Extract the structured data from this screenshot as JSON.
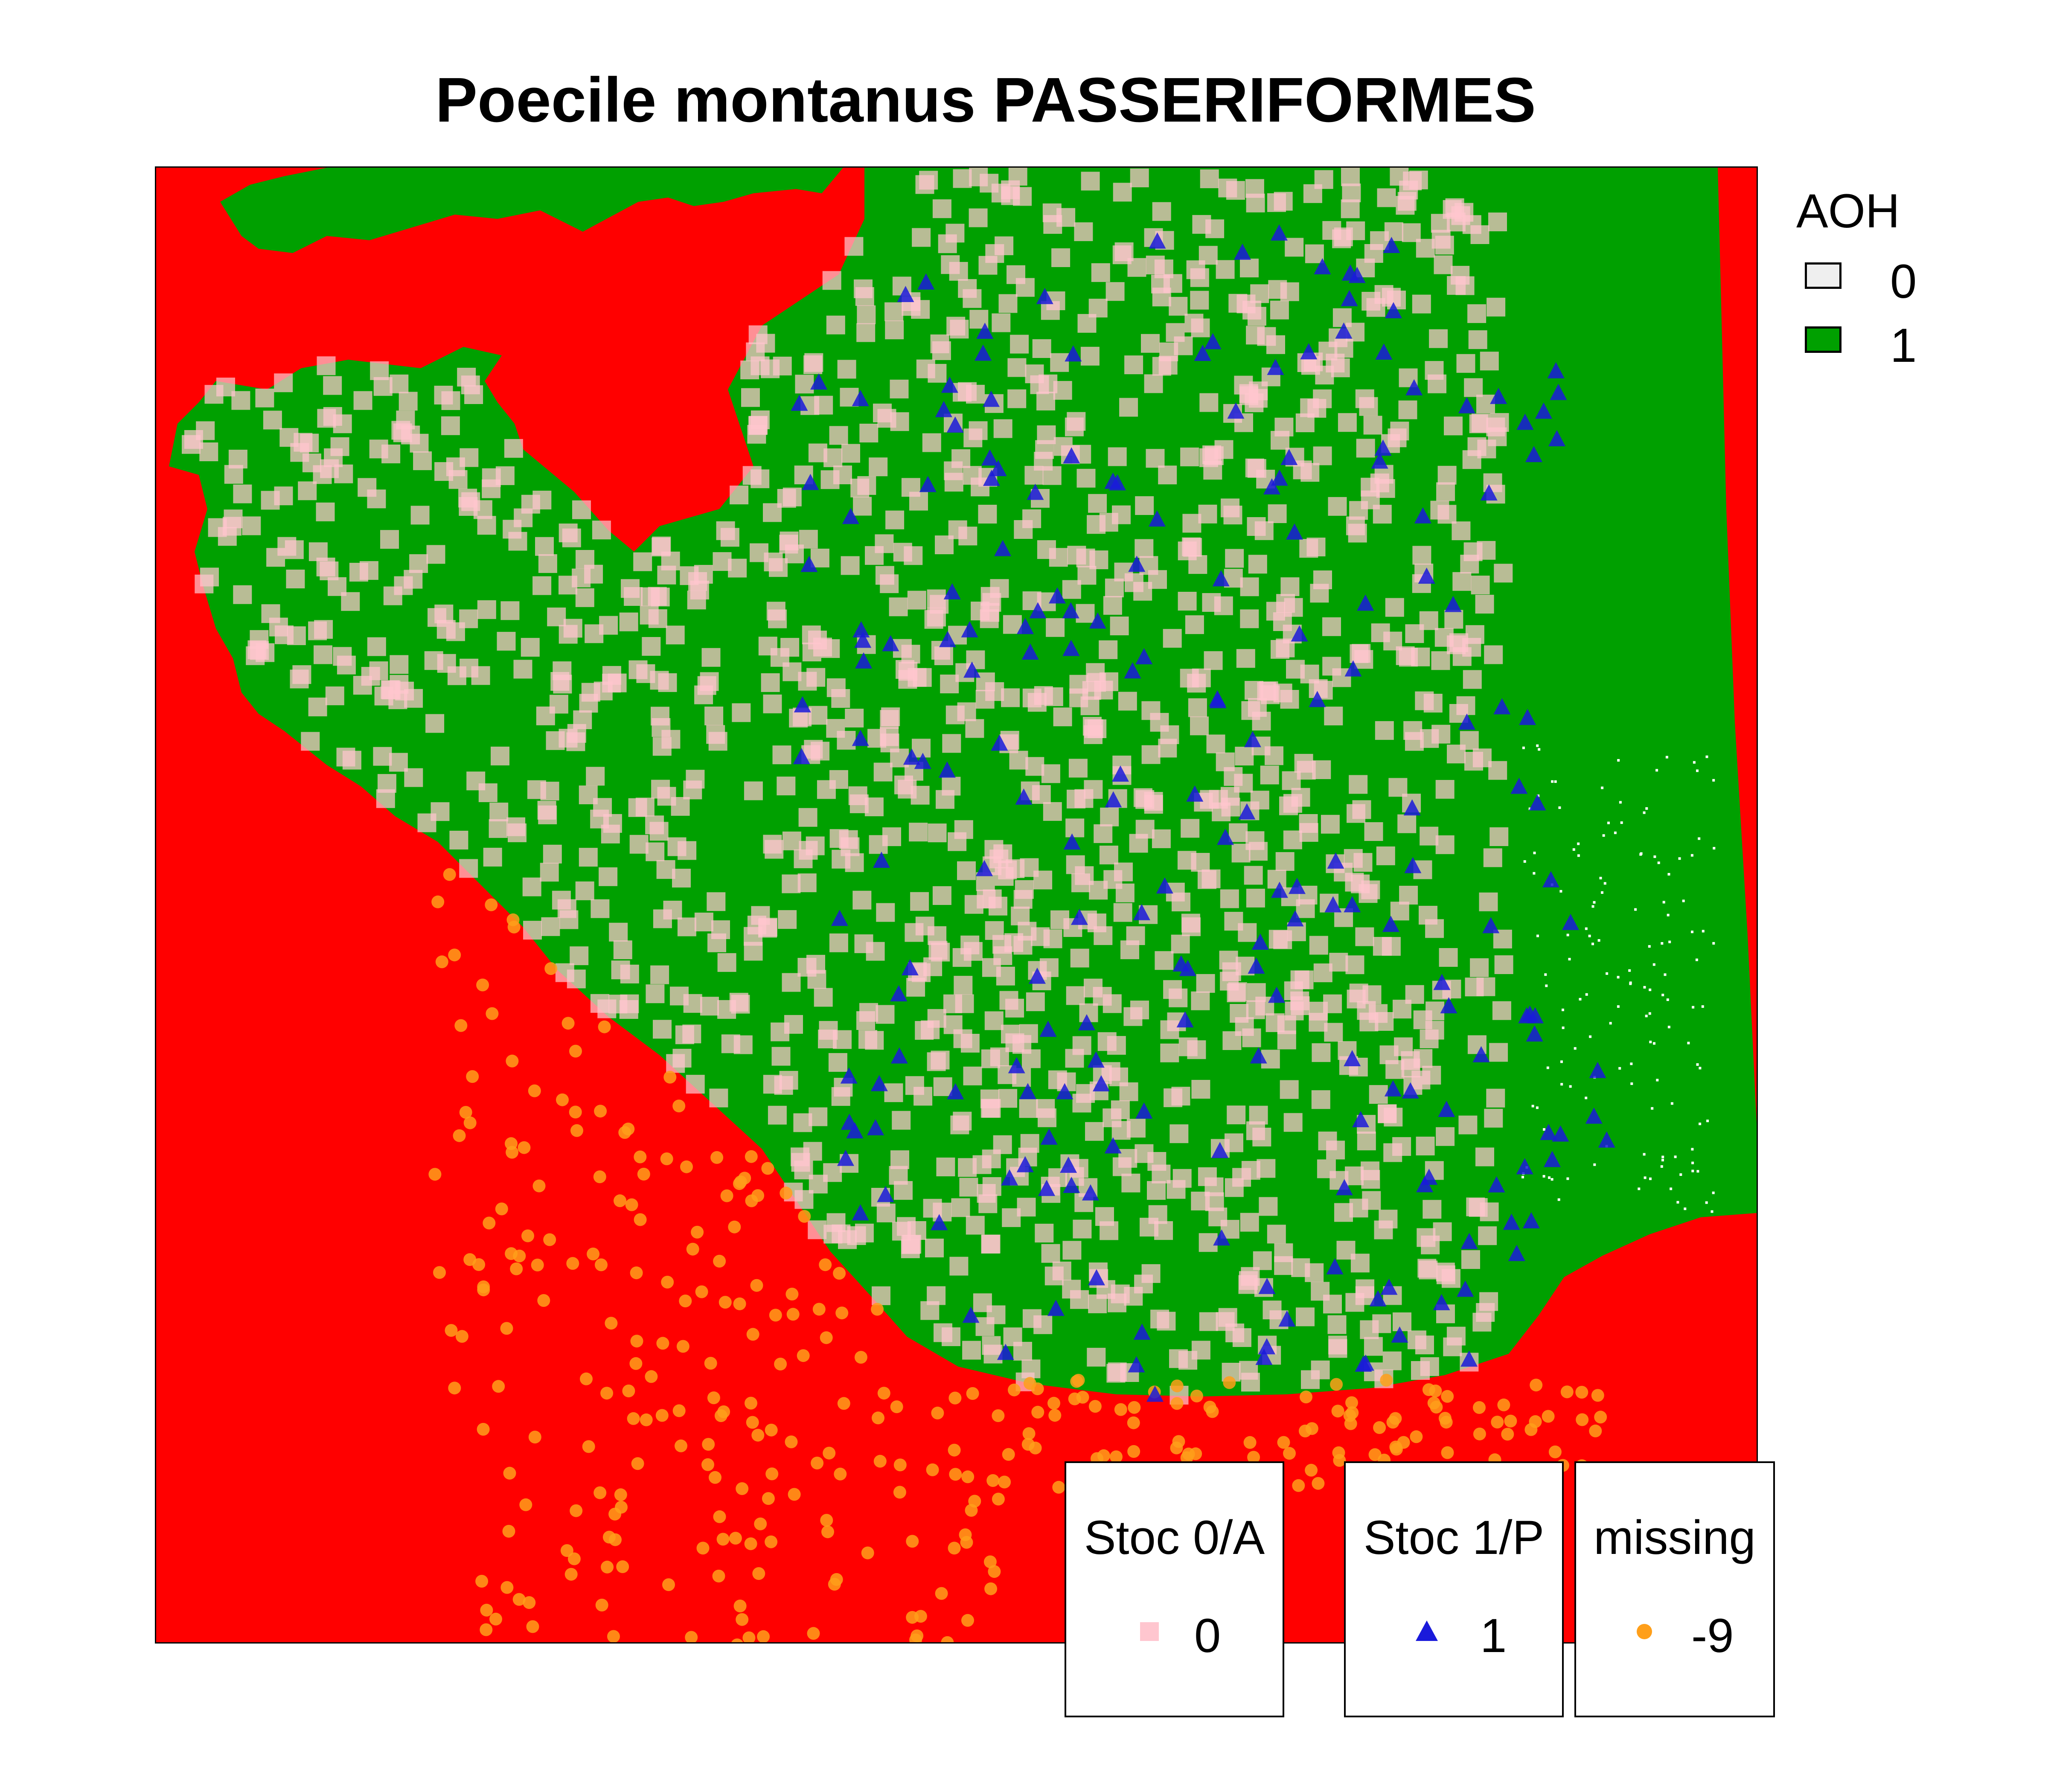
{
  "title": "Poecile montanus PASSERIFORMES",
  "colors": {
    "background_aoh0": "#ff0000",
    "aoh1": "#00a000",
    "aoh0_swatch": "#efefef",
    "stoc_absence": "#ffc6cf",
    "stoc_presence": "#1a1adb",
    "missing": "#ff9f1a",
    "speckle": "#ffffff"
  },
  "legend_aoh": {
    "title": "AOH",
    "items": [
      {
        "label": "0",
        "color": "#efefef"
      },
      {
        "label": "1",
        "color": "#00a000"
      }
    ]
  },
  "legend_points": [
    {
      "title": "Stoc 0/A",
      "label": "0",
      "symbol": "square",
      "color": "#ffc6cf"
    },
    {
      "title": "Stoc 1/P",
      "label": "1",
      "symbol": "triangle",
      "color": "#1a1adb"
    },
    {
      "title": "missing",
      "label": "-9",
      "symbol": "circle",
      "color": "#ff9f1a"
    }
  ],
  "map": {
    "layers": [
      "AOH raster (0 / 1)",
      "Stoc 0/A",
      "Stoc 1/P",
      "missing"
    ],
    "stoc_absence_count_shown": 1500,
    "stoc_presence_count_shown": 210,
    "missing_count_shown": 330
  }
}
